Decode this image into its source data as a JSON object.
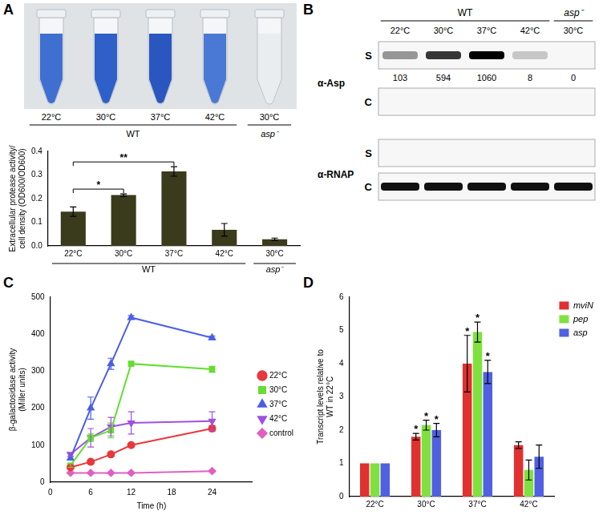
{
  "panel_labels": [
    "A",
    "B",
    "C",
    "D"
  ],
  "photo": {
    "lanes": [
      "22°C",
      "30°C",
      "37°C",
      "42°C",
      "30°C"
    ],
    "groups": [
      {
        "name": "WT",
        "from": 0,
        "to": 3
      },
      {
        "name": "asp⁻",
        "from": 4,
        "to": 4
      }
    ]
  },
  "blot": {
    "lanes": [
      "22°C",
      "30°C",
      "37°C",
      "42°C",
      "30°C"
    ],
    "groups": [
      {
        "name": "WT",
        "from": 0,
        "to": 3
      },
      {
        "name": "asp⁻",
        "from": 4,
        "to": 4
      }
    ],
    "rows": [
      {
        "antibody": "α-Asp",
        "fraction": "S",
        "quantification": [
          103,
          594,
          1060,
          8,
          0
        ]
      },
      {
        "antibody": "α-Asp",
        "fraction": "C",
        "bands": false
      },
      {
        "antibody": "α-RNAP",
        "fraction": "S",
        "bands": false
      },
      {
        "antibody": "α-RNAP",
        "fraction": "C",
        "bands": true
      }
    ]
  },
  "chart_data": [
    {
      "type": "bar",
      "categories": [
        "22°C",
        "30°C",
        "37°C",
        "42°C",
        "30°C"
      ],
      "groups": [
        {
          "name": "WT",
          "from": 0,
          "to": 3
        },
        {
          "name": "asp⁻",
          "from": 4,
          "to": 4
        }
      ],
      "values": [
        0.145,
        0.215,
        0.315,
        0.068,
        0.028
      ],
      "errors": [
        0.02,
        0.005,
        0.02,
        0.027,
        0.005
      ],
      "color": "#3a3a1c",
      "y_label": [
        "Extracellular protease activity/",
        "cell density (OD600/OD600)"
      ],
      "ylim": [
        0,
        0.4
      ],
      "yticks": [
        {
          "value": 0,
          "label": "0.0"
        },
        0.1,
        0.2,
        0.3,
        0.4
      ],
      "significance": [
        {
          "text": "*",
          "from": 0,
          "to": 1
        },
        {
          "text": "**",
          "from": 0,
          "to": 2
        }
      ],
      "grid": false
    },
    {
      "type": "line",
      "x": [
        3,
        6,
        9,
        12,
        24
      ],
      "x_label": "Time (h)",
      "y_label": [
        "β-galactosidase activity",
        "(Miller units)"
      ],
      "xlim": [
        0,
        30
      ],
      "xticks": [
        0,
        6,
        12,
        18,
        24
      ],
      "ylim": [
        0,
        500
      ],
      "yticks": [
        0,
        100,
        200,
        300,
        400,
        500
      ],
      "legend": "right",
      "grid": false,
      "series": [
        {
          "name": "22°C",
          "color": "#e8383d",
          "marker": "circle",
          "values": [
            40,
            55,
            75,
            100,
            145
          ],
          "errors": [
            3,
            5,
            5,
            5,
            8
          ]
        },
        {
          "name": "30°C",
          "color": "#66dd33",
          "marker": "square",
          "values": [
            45,
            120,
            140,
            320,
            305
          ],
          "errors": [
            5,
            10,
            20,
            5,
            8
          ]
        },
        {
          "name": "37°C",
          "color": "#4a5ee8",
          "marker": "triangle",
          "values": [
            65,
            200,
            320,
            445,
            390
          ],
          "errors": [
            5,
            30,
            15,
            5,
            5
          ]
        },
        {
          "name": "42°C",
          "color": "#a050e0",
          "marker": "triangle_down",
          "values": [
            75,
            120,
            150,
            160,
            165
          ],
          "errors": [
            5,
            25,
            25,
            30,
            25
          ]
        },
        {
          "name": "control",
          "color": "#e060c0",
          "marker": "diamond",
          "values": [
            25,
            25,
            25,
            25,
            30
          ],
          "errors": [
            2,
            2,
            2,
            2,
            2
          ]
        }
      ]
    },
    {
      "type": "bar",
      "categories": [
        "22°C",
        "30°C",
        "37°C",
        "42°C"
      ],
      "y_label": [
        "Transcript levels relative to",
        "WT in 22°C"
      ],
      "ylim": [
        0,
        6
      ],
      "yticks": [
        0,
        1,
        2,
        3,
        4,
        5,
        6
      ],
      "legend": "upper right",
      "grid": false,
      "series": [
        {
          "name": "mviN",
          "color": "#e03030",
          "values": [
            1,
            1.8,
            4.0,
            1.55
          ],
          "errors": [
            0,
            0.1,
            0.85,
            0.1
          ],
          "significance": [
            null,
            "*",
            "*",
            null
          ]
        },
        {
          "name": "pep",
          "color": "#80e040",
          "values": [
            1,
            2.15,
            4.95,
            0.8
          ],
          "errors": [
            0,
            0.15,
            0.3,
            0.3
          ],
          "significance": [
            null,
            "*",
            "*",
            null
          ]
        },
        {
          "name": "asp",
          "color": "#5060e0",
          "values": [
            1,
            2.0,
            3.75,
            1.2
          ],
          "errors": [
            0,
            0.2,
            0.35,
            0.35
          ],
          "significance": [
            null,
            "*",
            "*",
            null
          ]
        }
      ]
    }
  ]
}
